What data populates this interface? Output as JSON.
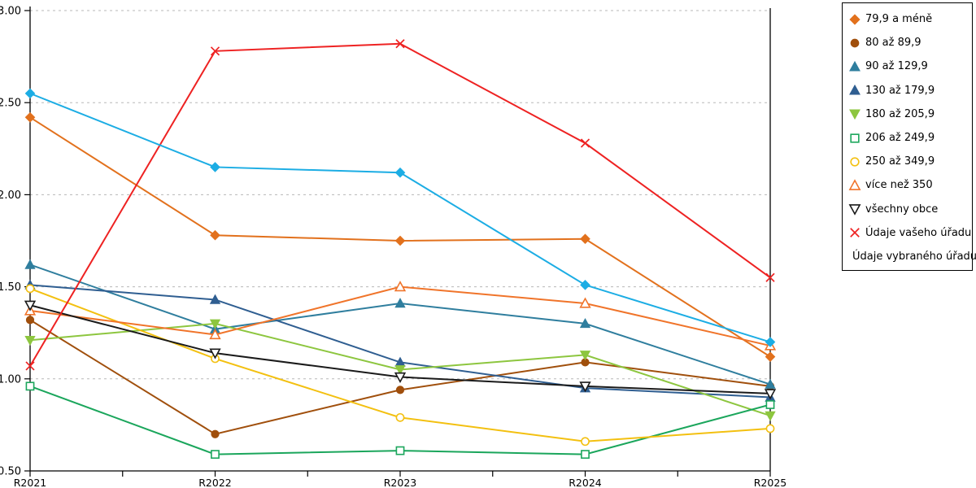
{
  "chart_data": {
    "type": "line",
    "title": "",
    "xlabel": "",
    "ylabel": "",
    "x_categories": [
      "R2021",
      "R2022",
      "R2023",
      "R2024",
      "R2025"
    ],
    "y_ticks": [
      "0.50",
      "1.00",
      "1.50",
      "2.00",
      "2.50",
      "3.00"
    ],
    "ylim": [
      0.5,
      3.0
    ],
    "grid": "horizontal-dashed",
    "gridline_color": "#b8b8b8",
    "axis_color": "#000000",
    "legend_position": "outside-right",
    "series": [
      {
        "name": "79,9 a méně",
        "marker": "diamond",
        "marker_fill": "solid",
        "color": "#E2711D",
        "values": [
          2.42,
          1.78,
          1.75,
          1.76,
          1.12
        ]
      },
      {
        "name": "80 až 89,9",
        "marker": "circle",
        "marker_fill": "solid",
        "color": "#A04F0C",
        "values": [
          1.32,
          0.7,
          0.94,
          1.09,
          0.96
        ]
      },
      {
        "name": "90 až 129,9",
        "marker": "triangle-up",
        "marker_fill": "solid",
        "color": "#2F7E9E",
        "values": [
          1.62,
          1.27,
          1.41,
          1.3,
          0.97
        ]
      },
      {
        "name": "130 až 179,9",
        "marker": "triangle-up",
        "marker_fill": "solid",
        "color": "#2F5E91",
        "values": [
          1.51,
          1.43,
          1.09,
          0.95,
          0.9
        ]
      },
      {
        "name": "180 až 205,9",
        "marker": "triangle-down",
        "marker_fill": "solid",
        "color": "#8DC63F",
        "values": [
          1.21,
          1.3,
          1.05,
          1.13,
          0.8
        ]
      },
      {
        "name": "206 až 249,9",
        "marker": "square",
        "marker_fill": "open",
        "color": "#1BA65C",
        "values": [
          0.96,
          0.59,
          0.61,
          0.59,
          0.86
        ]
      },
      {
        "name": "250 až 349,9",
        "marker": "circle",
        "marker_fill": "open",
        "color": "#F3C010",
        "values": [
          1.49,
          1.11,
          0.79,
          0.66,
          0.73
        ]
      },
      {
        "name": "více než 350",
        "marker": "triangle-up",
        "marker_fill": "open",
        "color": "#F0742A",
        "values": [
          1.37,
          1.24,
          1.5,
          1.41,
          1.18
        ]
      },
      {
        "name": "všechny obce",
        "marker": "triangle-down",
        "marker_fill": "open",
        "color": "#1A1A1A",
        "values": [
          1.4,
          1.14,
          1.01,
          0.96,
          0.92
        ]
      },
      {
        "name": "Údaje vašeho úřadu",
        "marker": "x",
        "marker_fill": "open",
        "color": "#EE2222",
        "values": [
          1.07,
          2.78,
          2.82,
          2.28,
          1.55
        ]
      },
      {
        "name": "Údaje vybraného úřadu",
        "marker": "diamond",
        "marker_fill": "solid",
        "color": "#1CADE4",
        "values": [
          2.55,
          2.15,
          2.12,
          1.51,
          1.2
        ]
      }
    ]
  }
}
